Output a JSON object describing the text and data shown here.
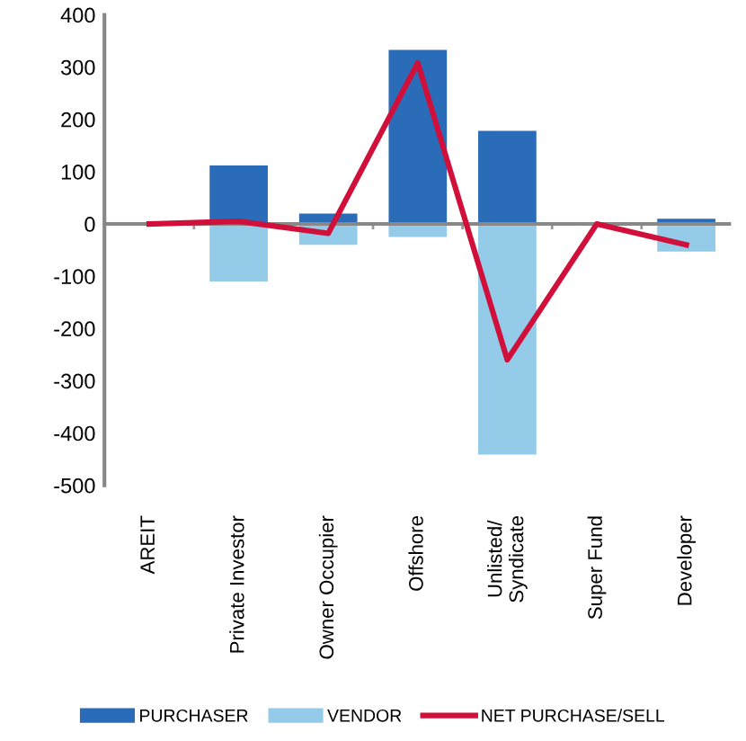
{
  "chart_data": {
    "type": "bar",
    "stacked": true,
    "categories": [
      "AREIT",
      "Private Investor",
      "Owner Occupier",
      "Offshore",
      "Unlisted/\nSyndicate",
      "Super Fund",
      "Developer"
    ],
    "series": [
      {
        "name": "PURCHASER",
        "color": "#2b6cb8",
        "values": [
          0,
          112,
          20,
          333,
          178,
          0,
          10
        ]
      },
      {
        "name": "VENDOR",
        "color": "#93cbe8",
        "values": [
          0,
          -110,
          -40,
          -25,
          -441,
          0,
          -53
        ]
      },
      {
        "name": "NET PURCHASE/SELL",
        "type": "line",
        "color": "#d0103a",
        "values": [
          0,
          5,
          -18,
          308,
          -260,
          0,
          -40
        ]
      }
    ],
    "ylim": [
      -500,
      400
    ],
    "yticks": [
      -500,
      -400,
      -300,
      -200,
      -100,
      0,
      100,
      200,
      300,
      400
    ],
    "legend": "bottom",
    "marker": "none",
    "line_style": "solid"
  }
}
